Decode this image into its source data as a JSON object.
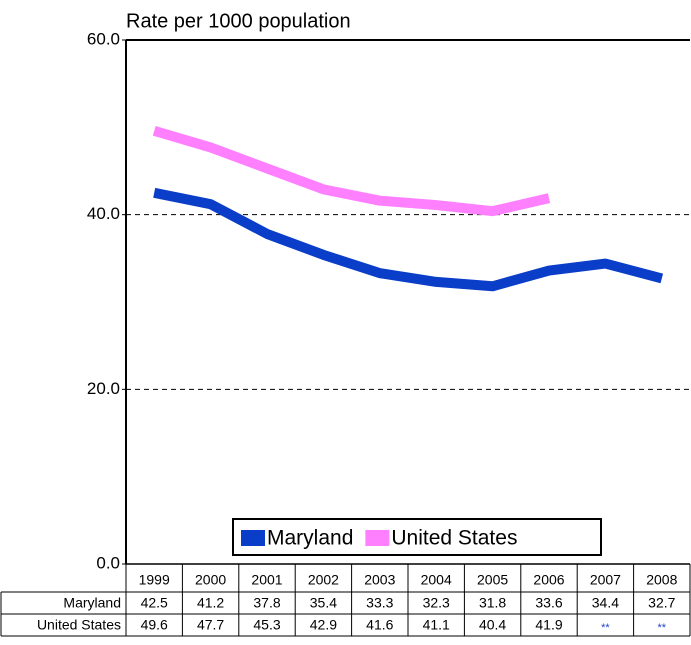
{
  "chart_data": {
    "type": "line",
    "y_label": "Rate per 1000 population",
    "categories": [
      "1999",
      "2000",
      "2001",
      "2002",
      "2003",
      "2004",
      "2005",
      "2006",
      "2007",
      "2008"
    ],
    "series": [
      {
        "name": "Maryland",
        "color": "#0a3ec8",
        "values": [
          42.5,
          41.2,
          37.8,
          35.4,
          33.3,
          32.3,
          31.8,
          33.6,
          34.4,
          32.7
        ]
      },
      {
        "name": "United States",
        "color": "#ff80ff",
        "values": [
          49.6,
          47.7,
          45.3,
          42.9,
          41.6,
          41.1,
          40.4,
          41.9,
          null,
          null
        ]
      }
    ],
    "missing_label": "**",
    "ylim": [
      0,
      60
    ],
    "yticks": [
      {
        "value": 0,
        "label": "0.0"
      },
      {
        "value": 20,
        "label": "20.0"
      },
      {
        "value": 40,
        "label": "40.0"
      },
      {
        "value": 60,
        "label": "60.0"
      }
    ],
    "grid": true,
    "legend": "bottom"
  }
}
